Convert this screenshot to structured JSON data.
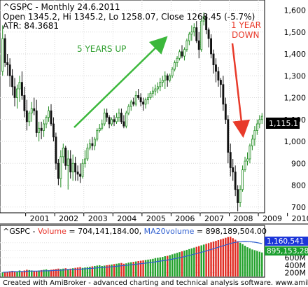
{
  "chart_data": [
    {
      "type": "candlestick",
      "header": {
        "line1": "^GSPC - Monthly 24.6.2011",
        "line2": "Open 1345.2, Hi 1345.2, Lo 1258.07, Close 1268.45 (-5.7%)",
        "line3": "ATR: 84.3681"
      },
      "y_ticks": [
        "1,600",
        "1,500",
        "1,400",
        "1,300",
        "1,200",
        "1,100",
        "1,000",
        "900",
        "800",
        "700"
      ],
      "x_ticks": [
        "2001",
        "2002",
        "2003",
        "2004",
        "2005",
        "2006",
        "2007",
        "2008",
        "2009",
        "2010"
      ],
      "ylim": [
        680,
        1640
      ],
      "last_price_label": "1,115.1",
      "annotations": [
        {
          "text": "5 YEARS UP",
          "color": "#2e9e2e"
        },
        {
          "text": "1 YEAR",
          "color": "#e83a2a"
        },
        {
          "text": "DOWN",
          "color": "#e83a2a"
        }
      ],
      "colors": {
        "bull": "#1f8b1f",
        "bear": "#111111",
        "up_arrow": "#3cb83c",
        "down_arrow": "#e83a2a"
      },
      "ohlc": [
        [
          1320,
          1530,
          1300,
          1470
        ],
        [
          1470,
          1490,
          1340,
          1360
        ],
        [
          1360,
          1400,
          1300,
          1350
        ],
        [
          1350,
          1380,
          1250,
          1300
        ],
        [
          1300,
          1330,
          1210,
          1250
        ],
        [
          1250,
          1290,
          1160,
          1200
        ],
        [
          1200,
          1260,
          1150,
          1240
        ],
        [
          1240,
          1300,
          1180,
          1270
        ],
        [
          1270,
          1320,
          1190,
          1210
        ],
        [
          1210,
          1250,
          1110,
          1140
        ],
        [
          1140,
          1190,
          1050,
          1090
        ],
        [
          1090,
          1140,
          1070,
          1130
        ],
        [
          1130,
          1180,
          1090,
          1150
        ],
        [
          1150,
          1200,
          1120,
          1140
        ],
        [
          1140,
          1190,
          1020,
          1040
        ],
        [
          1040,
          1090,
          1000,
          1060
        ],
        [
          1060,
          1090,
          1010,
          1050
        ],
        [
          1050,
          1100,
          1020,
          1080
        ],
        [
          1080,
          1120,
          1060,
          1110
        ],
        [
          1110,
          1160,
          1090,
          1140
        ],
        [
          1140,
          1170,
          1070,
          1080
        ],
        [
          1080,
          1110,
          1000,
          1020
        ],
        [
          1020,
          1040,
          870,
          900
        ],
        [
          900,
          920,
          800,
          830
        ],
        [
          830,
          960,
          790,
          930
        ],
        [
          930,
          990,
          900,
          970
        ],
        [
          970,
          980,
          870,
          890
        ],
        [
          890,
          960,
          780,
          920
        ],
        [
          920,
          960,
          830,
          860
        ],
        [
          860,
          940,
          820,
          900
        ],
        [
          900,
          930,
          820,
          860
        ],
        [
          860,
          890,
          820,
          850
        ],
        [
          850,
          900,
          810,
          840
        ],
        [
          840,
          920,
          830,
          900
        ],
        [
          900,
          960,
          880,
          920
        ],
        [
          920,
          990,
          910,
          970
        ],
        [
          970,
          1010,
          960,
          990
        ],
        [
          990,
          1020,
          960,
          980
        ],
        [
          980,
          1020,
          960,
          1010
        ],
        [
          1010,
          1060,
          1000,
          1050
        ],
        [
          1050,
          1080,
          1040,
          1060
        ],
        [
          1060,
          1100,
          1050,
          1080
        ],
        [
          1080,
          1150,
          1070,
          1130
        ],
        [
          1130,
          1150,
          1090,
          1110
        ],
        [
          1110,
          1120,
          1060,
          1080
        ],
        [
          1080,
          1110,
          1070,
          1100
        ],
        [
          1100,
          1120,
          1070,
          1090
        ],
        [
          1090,
          1130,
          1080,
          1110
        ],
        [
          1110,
          1150,
          1090,
          1130
        ],
        [
          1130,
          1150,
          1080,
          1090
        ],
        [
          1090,
          1120,
          1060,
          1070
        ],
        [
          1070,
          1140,
          1060,
          1130
        ],
        [
          1130,
          1170,
          1120,
          1160
        ],
        [
          1160,
          1190,
          1140,
          1180
        ],
        [
          1180,
          1200,
          1160,
          1170
        ],
        [
          1170,
          1230,
          1160,
          1210
        ],
        [
          1210,
          1240,
          1190,
          1200
        ],
        [
          1200,
          1220,
          1160,
          1180
        ],
        [
          1180,
          1200,
          1140,
          1170
        ],
        [
          1170,
          1200,
          1150,
          1190
        ],
        [
          1190,
          1220,
          1170,
          1200
        ],
        [
          1200,
          1230,
          1190,
          1220
        ],
        [
          1220,
          1250,
          1200,
          1230
        ],
        [
          1230,
          1260,
          1210,
          1240
        ],
        [
          1240,
          1270,
          1220,
          1250
        ],
        [
          1250,
          1290,
          1230,
          1270
        ],
        [
          1270,
          1300,
          1250,
          1280
        ],
        [
          1280,
          1320,
          1240,
          1300
        ],
        [
          1300,
          1310,
          1250,
          1280
        ],
        [
          1280,
          1310,
          1270,
          1300
        ],
        [
          1300,
          1340,
          1290,
          1330
        ],
        [
          1330,
          1370,
          1320,
          1360
        ],
        [
          1360,
          1390,
          1340,
          1380
        ],
        [
          1380,
          1420,
          1370,
          1410
        ],
        [
          1410,
          1440,
          1380,
          1390
        ],
        [
          1390,
          1430,
          1370,
          1420
        ],
        [
          1420,
          1470,
          1410,
          1460
        ],
        [
          1460,
          1500,
          1440,
          1490
        ],
        [
          1490,
          1530,
          1460,
          1500
        ],
        [
          1500,
          1540,
          1480,
          1520
        ],
        [
          1520,
          1550,
          1450,
          1460
        ],
        [
          1460,
          1500,
          1380,
          1420
        ],
        [
          1420,
          1560,
          1410,
          1550
        ],
        [
          1550,
          1590,
          1530,
          1570
        ],
        [
          1570,
          1580,
          1490,
          1510
        ],
        [
          1510,
          1520,
          1430,
          1470
        ],
        [
          1470,
          1490,
          1380,
          1400
        ],
        [
          1400,
          1420,
          1310,
          1350
        ],
        [
          1350,
          1380,
          1270,
          1320
        ],
        [
          1320,
          1340,
          1250,
          1280
        ],
        [
          1280,
          1290,
          1200,
          1260
        ],
        [
          1260,
          1300,
          1140,
          1170
        ],
        [
          1170,
          1200,
          1080,
          1100
        ],
        [
          1100,
          1120,
          900,
          950
        ],
        [
          950,
          990,
          840,
          880
        ],
        [
          880,
          920,
          820,
          860
        ],
        [
          860,
          890,
          750,
          780
        ],
        [
          780,
          800,
          680,
          720
        ],
        [
          720,
          800,
          700,
          780
        ],
        [
          780,
          890,
          770,
          870
        ],
        [
          870,
          930,
          860,
          910
        ],
        [
          910,
          950,
          890,
          920
        ],
        [
          920,
          990,
          900,
          980
        ],
        [
          980,
          1030,
          960,
          1010
        ],
        [
          1010,
          1070,
          980,
          1050
        ],
        [
          1050,
          1100,
          1030,
          1080
        ],
        [
          1080,
          1120,
          1060,
          1100
        ],
        [
          1100,
          1130,
          1080,
          1115
        ]
      ],
      "volume_panel": {
        "label_prefix": "^GSPC - ",
        "volume_label": "Volume",
        "volume_value": " = 704,141,184.00, ",
        "ma_label": "MA20volume",
        "ma_value": " = 898,189,504.00",
        "y_ticks": [
          "1000M",
          "800M",
          "600M",
          "400M",
          "200M"
        ],
        "ylim": [
          100,
          1200
        ],
        "vol_badge": "1,160,541",
        "ma_badge": "895,153,28",
        "volumes_mil": [
          210,
          220,
          230,
          240,
          250,
          230,
          220,
          260,
          240,
          260,
          280,
          270,
          260,
          250,
          240,
          260,
          270,
          280,
          290,
          270,
          280,
          290,
          300,
          310,
          300,
          310,
          320,
          300,
          310,
          320,
          330,
          340,
          350,
          330,
          340,
          350,
          360,
          370,
          380,
          390,
          400,
          380,
          390,
          400,
          410,
          420,
          430,
          440,
          450,
          460,
          440,
          450,
          470,
          480,
          490,
          500,
          510,
          520,
          530,
          540,
          550,
          560,
          570,
          590,
          600,
          610,
          620,
          640,
          650,
          670,
          690,
          710,
          730,
          750,
          770,
          790,
          810,
          830,
          850,
          870,
          890,
          910,
          930,
          950,
          970,
          990,
          1010,
          1030,
          1050,
          1070,
          1090,
          1110,
          1130,
          1150,
          1160,
          1120,
          1080,
          1040,
          1000,
          960,
          920,
          880,
          850,
          820,
          800,
          780,
          760,
          740
        ]
      },
      "footer": "Created with AmiBroker - advanced charting and technical analysis software. www.amibroker.com"
    }
  ]
}
